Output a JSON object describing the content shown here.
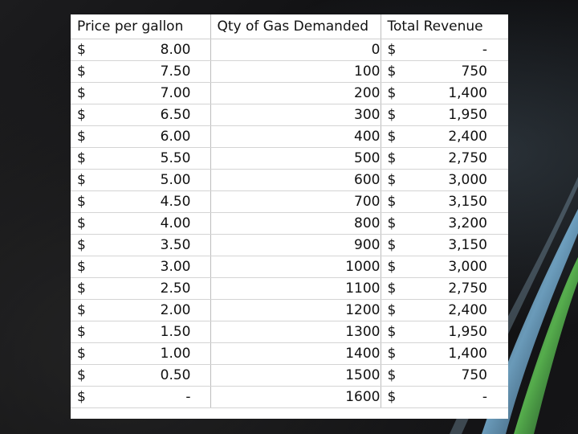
{
  "table": {
    "headers": {
      "price": "Price per gallon",
      "qty": "Qty of Gas Demanded",
      "revenue": "Total Revenue"
    },
    "currency_symbol": "$",
    "rows": [
      {
        "price": "8.00",
        "qty": "0",
        "revenue": "-"
      },
      {
        "price": "7.50",
        "qty": "100",
        "revenue": "750"
      },
      {
        "price": "7.00",
        "qty": "200",
        "revenue": "1,400"
      },
      {
        "price": "6.50",
        "qty": "300",
        "revenue": "1,950"
      },
      {
        "price": "6.00",
        "qty": "400",
        "revenue": "2,400"
      },
      {
        "price": "5.50",
        "qty": "500",
        "revenue": "2,750"
      },
      {
        "price": "5.00",
        "qty": "600",
        "revenue": "3,000"
      },
      {
        "price": "4.50",
        "qty": "700",
        "revenue": "3,150"
      },
      {
        "price": "4.00",
        "qty": "800",
        "revenue": "3,200"
      },
      {
        "price": "3.50",
        "qty": "900",
        "revenue": "3,150"
      },
      {
        "price": "3.00",
        "qty": "1000",
        "revenue": "3,000"
      },
      {
        "price": "2.50",
        "qty": "1100",
        "revenue": "2,750"
      },
      {
        "price": "2.00",
        "qty": "1200",
        "revenue": "2,400"
      },
      {
        "price": "1.50",
        "qty": "1300",
        "revenue": "1,950"
      },
      {
        "price": "1.00",
        "qty": "1400",
        "revenue": "1,400"
      },
      {
        "price": "0.50",
        "qty": "1500",
        "revenue": "750"
      },
      {
        "price": "-",
        "qty": "1600",
        "revenue": "-"
      }
    ]
  }
}
